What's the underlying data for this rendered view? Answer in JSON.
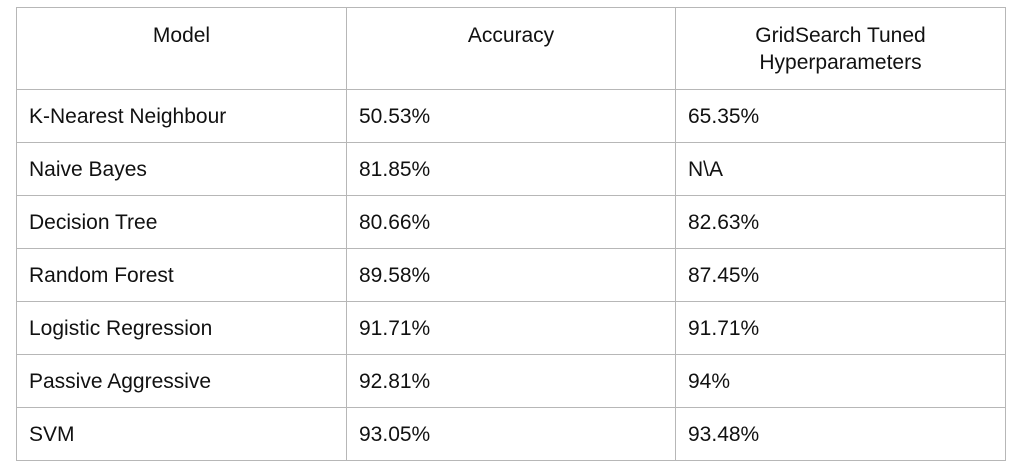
{
  "table": {
    "headers": [
      "Model",
      "Accuracy",
      "GridSearch Tuned Hyperparameters"
    ],
    "rows": [
      [
        "K-Nearest Neighbour",
        "50.53%",
        "65.35%"
      ],
      [
        "Naive Bayes",
        "81.85%",
        "N\\A"
      ],
      [
        "Decision Tree",
        "80.66%",
        "82.63%"
      ],
      [
        "Random Forest",
        "89.58%",
        "87.45%"
      ],
      [
        "Logistic Regression",
        "91.71%",
        "91.71%"
      ],
      [
        "Passive Aggressive",
        "92.81%",
        "94%"
      ],
      [
        "SVM",
        "93.05%",
        "93.48%"
      ]
    ]
  }
}
